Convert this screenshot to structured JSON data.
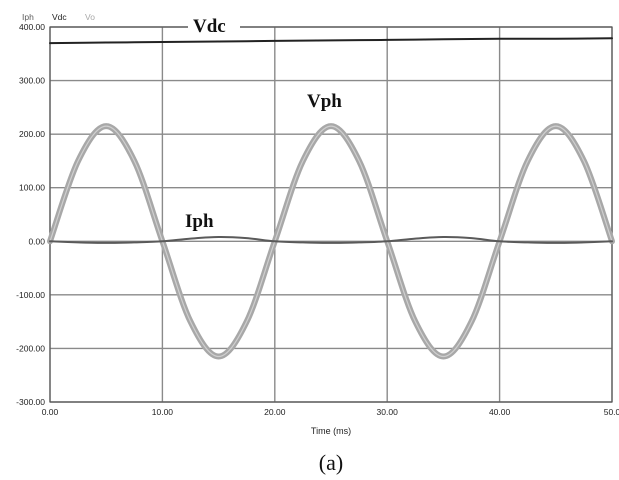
{
  "chart_data": {
    "type": "line",
    "title": "",
    "xlabel": "Time (ms)",
    "ylabel": "",
    "caption": "(a)",
    "xlim": [
      0,
      50
    ],
    "ylim": [
      -300,
      400
    ],
    "grid": true,
    "legend_position": "top-left",
    "x_ticks": [
      "0.00",
      "10.00",
      "20.00",
      "30.00",
      "40.00",
      "50.0"
    ],
    "x_tick_values": [
      0,
      10,
      20,
      30,
      40,
      50
    ],
    "y_ticks": [
      "400.00",
      "300.00",
      "200.00",
      "100.00",
      "0.00",
      "-100.00",
      "-200.00",
      "-300.00"
    ],
    "y_tick_values": [
      400,
      300,
      200,
      100,
      0,
      -100,
      -200,
      -300
    ],
    "legend": [
      "Iph",
      "Vdc",
      "Vo"
    ],
    "annotations": [
      "Vdc",
      "Vph",
      "Iph"
    ],
    "series": [
      {
        "name": "Vdc",
        "color": "#222222",
        "x": [
          0,
          5,
          10,
          15,
          20,
          25,
          30,
          35,
          40,
          45,
          50
        ],
        "y": [
          370,
          371,
          372,
          373,
          374,
          375,
          376,
          377,
          378,
          378,
          379
        ]
      },
      {
        "name": "Vo",
        "color": "#a8a8a8",
        "x": [
          0,
          2.5,
          5,
          7.5,
          10,
          12.5,
          15,
          17.5,
          20,
          22.5,
          25,
          27.5,
          30,
          32.5,
          35,
          37.5,
          40,
          42.5,
          45,
          47.5,
          50
        ],
        "y": [
          0,
          150,
          215,
          150,
          0,
          -150,
          -215,
          -150,
          0,
          150,
          215,
          150,
          0,
          -150,
          -215,
          -150,
          0,
          150,
          215,
          150,
          0
        ]
      },
      {
        "name": "Iph",
        "color": "#5a5a5a",
        "x": [
          0,
          2.5,
          5,
          7.5,
          10,
          12.5,
          15,
          17.5,
          20,
          22.5,
          25,
          27.5,
          30,
          32.5,
          35,
          37.5,
          40,
          42.5,
          45,
          47.5,
          50
        ],
        "y": [
          0,
          -2,
          -3,
          -2,
          0,
          5,
          8,
          6,
          0,
          -2,
          -3,
          -2,
          0,
          5,
          8,
          6,
          0,
          -2,
          -3,
          -2,
          0
        ]
      }
    ]
  },
  "colors": {
    "grid": "#8a8a8a",
    "legend_iph": "#5a5a5a",
    "legend_vdc": "#222222",
    "legend_vo": "#a8a8a8"
  }
}
